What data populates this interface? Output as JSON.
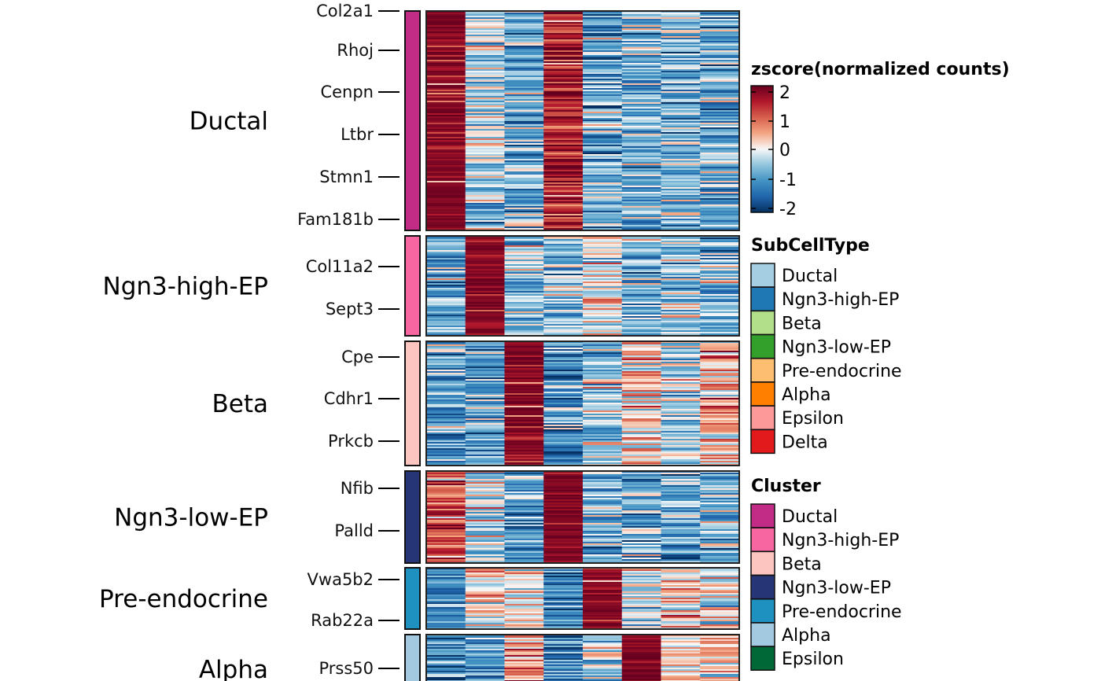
{
  "chart_data": {
    "type": "heatmap",
    "color_scale": {
      "title": "zscore(normalized counts)",
      "range": [
        -2,
        2
      ],
      "ticks": [
        "2",
        "1",
        "0",
        "-1",
        "-2"
      ],
      "palette": [
        "#053061",
        "#2166ac",
        "#4393c3",
        "#92c5de",
        "#f7f7f7",
        "#f4a582",
        "#d6604d",
        "#b2182b",
        "#67001f"
      ]
    },
    "columns_count": 8,
    "row_groups": [
      {
        "label": "Ductal",
        "cluster_color": "#c22b86",
        "genes": [
          "Col2a1",
          "Rhoj",
          "Cenpn",
          "Ltbr",
          "Stmn1",
          "Fam181b"
        ],
        "column_mean_zscore": [
          2,
          -0.4,
          -0.8,
          1.5,
          -0.8,
          -0.7,
          -0.7,
          -0.8
        ]
      },
      {
        "label": "Ngn3-high-EP",
        "cluster_color": "#f766a0",
        "genes": [
          "Col11a2",
          "Sept3"
        ],
        "column_mean_zscore": [
          -0.8,
          2,
          -0.5,
          -0.6,
          0,
          -0.7,
          -0.5,
          -0.6
        ]
      },
      {
        "label": "Beta",
        "cluster_color": "#fcc5c0",
        "genes": [
          "Cpe",
          "Cdhr1",
          "Prkcb"
        ],
        "column_mean_zscore": [
          -0.9,
          -0.9,
          2,
          -1,
          -0.3,
          0.2,
          -0.3,
          0.5
        ]
      },
      {
        "label": "Ngn3-low-EP",
        "cluster_color": "#253575",
        "genes": [
          "Nfib",
          "Palld"
        ],
        "column_mean_zscore": [
          1,
          -0.2,
          -1,
          2,
          -0.8,
          -0.7,
          -0.8,
          -0.8
        ]
      },
      {
        "label": "Pre-endocrine",
        "cluster_color": "#1f91c0",
        "genes": [
          "Vwa5b2",
          "Rab22a"
        ],
        "column_mean_zscore": [
          -1.2,
          0.2,
          -0.1,
          -1.2,
          2,
          -0.2,
          0.4,
          0
        ]
      },
      {
        "label": "Alpha",
        "cluster_color": "#a2c9e0",
        "genes": [
          "Prss50"
        ],
        "column_mean_zscore": [
          -1,
          -1,
          0.8,
          -1,
          -0.3,
          2,
          0.3,
          0.2
        ]
      }
    ]
  },
  "legends": {
    "subcelltype": {
      "title": "SubCellType",
      "items": [
        {
          "label": "Ductal",
          "color": "#a6cee3"
        },
        {
          "label": "Ngn3-high-EP",
          "color": "#1f78b4"
        },
        {
          "label": "Beta",
          "color": "#b2df8a"
        },
        {
          "label": "Ngn3-low-EP",
          "color": "#33a02c"
        },
        {
          "label": "Pre-endocrine",
          "color": "#fdbf6f"
        },
        {
          "label": "Alpha",
          "color": "#ff7f00"
        },
        {
          "label": "Epsilon",
          "color": "#fb9a99"
        },
        {
          "label": "Delta",
          "color": "#e31a1c"
        }
      ]
    },
    "cluster": {
      "title": "Cluster",
      "items": [
        {
          "label": "Ductal",
          "color": "#c22b86"
        },
        {
          "label": "Ngn3-high-EP",
          "color": "#f766a0"
        },
        {
          "label": "Beta",
          "color": "#fcc5c0"
        },
        {
          "label": "Ngn3-low-EP",
          "color": "#253575"
        },
        {
          "label": "Pre-endocrine",
          "color": "#1f91c0"
        },
        {
          "label": "Alpha",
          "color": "#a2c9e0"
        },
        {
          "label": "Epsilon",
          "color": "#006837"
        }
      ]
    }
  }
}
